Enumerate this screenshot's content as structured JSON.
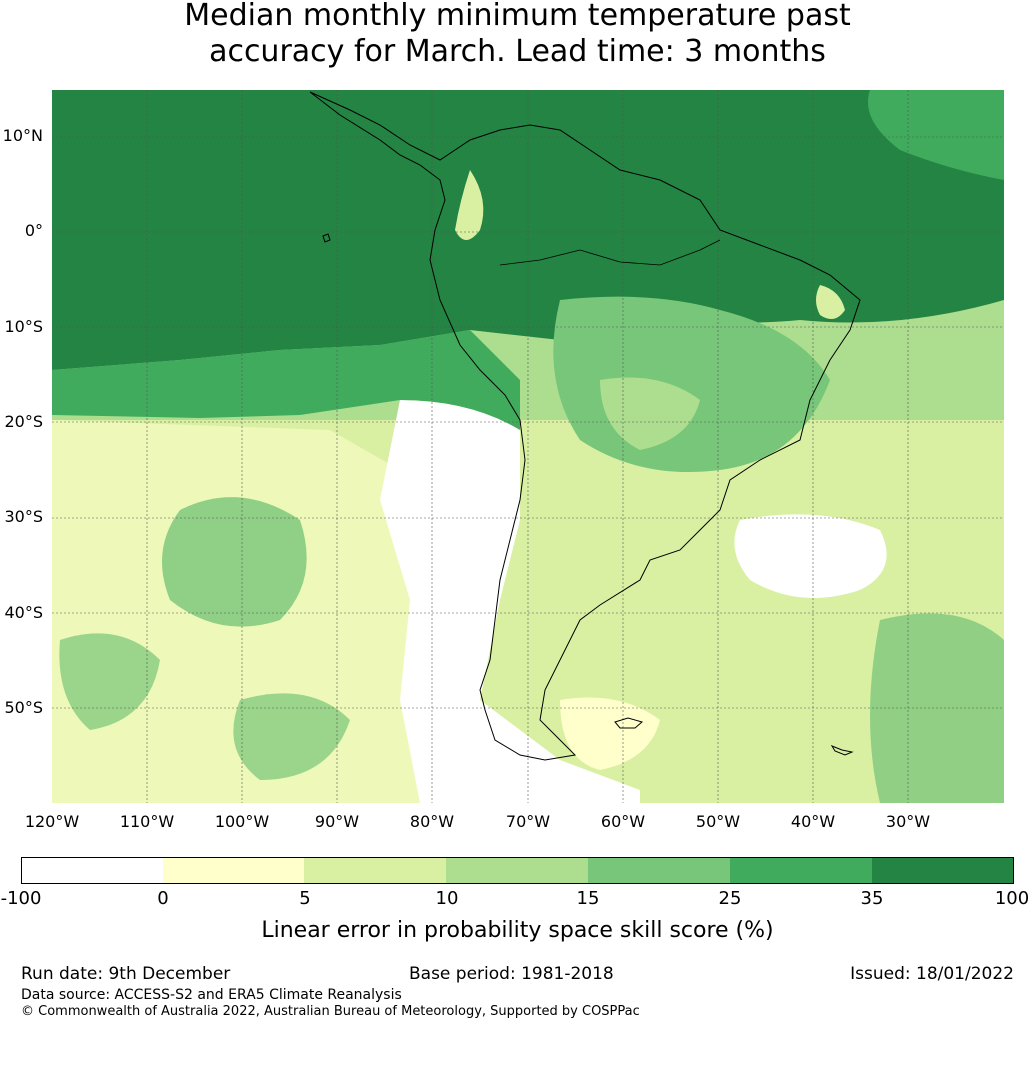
{
  "title": {
    "line1": "Median monthly minimum temperature past",
    "line2": "accuracy for March. Lead time: 3 months"
  },
  "map": {
    "lat_labels": [
      "10°N",
      "0°",
      "10°S",
      "20°S",
      "30°S",
      "40°S",
      "50°S"
    ],
    "lon_labels": [
      "120°W",
      "110°W",
      "100°W",
      "90°W",
      "80°W",
      "70°W",
      "60°W",
      "50°W",
      "40°W",
      "30°W"
    ],
    "land_outline_color": "#000000",
    "grid": true
  },
  "colorbar": {
    "ticks": [
      "-100",
      "0",
      "5",
      "10",
      "15",
      "25",
      "35",
      "100"
    ],
    "colors": [
      "#ffffff",
      "#ffffcc",
      "#d9f0a3",
      "#addd8e",
      "#78c679",
      "#41ab5d",
      "#238443"
    ],
    "label": "Linear error in probability space skill score (%)"
  },
  "footer": {
    "run_date": "Run date: 9th December",
    "base_period": "Base period: 1981-2018",
    "issued": "Issued: 18/01/2022",
    "data_source": "Data source: ACCESS-S2 and ERA5 Climate Reanalysis",
    "copyright": "© Commonwealth of Australia 2022, Australian Bureau of Meteorology, Supported by COSPPac"
  }
}
